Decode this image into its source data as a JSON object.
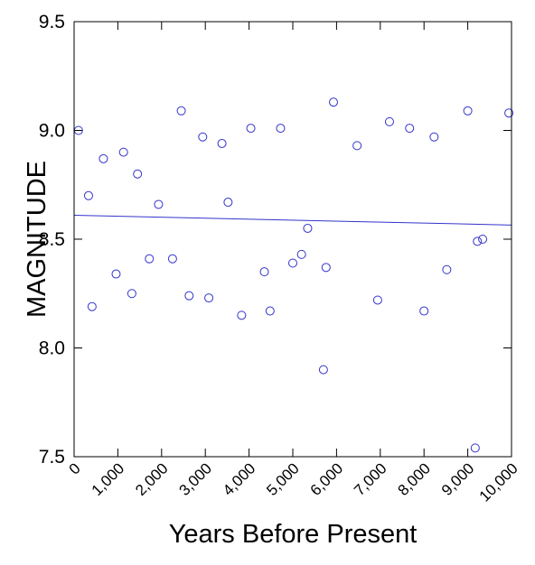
{
  "chart_data": {
    "type": "scatter",
    "xlabel": "Years Before Present",
    "ylabel": "MAGNITUDE",
    "xlim": [
      0,
      10000
    ],
    "ylim": [
      7.5,
      9.5
    ],
    "x_ticks": [
      0,
      1000,
      2000,
      3000,
      4000,
      5000,
      6000,
      7000,
      8000,
      9000,
      10000
    ],
    "x_tick_labels": [
      "0",
      "1,000",
      "2,000",
      "3,000",
      "4,000",
      "5,000",
      "6,000",
      "7,000",
      "8,000",
      "9,000",
      "10,000"
    ],
    "y_ticks": [
      7.5,
      8.0,
      8.5,
      9.0,
      9.5
    ],
    "y_tick_labels": [
      "7.5",
      "8.0",
      "8.5",
      "9.0",
      "9.5"
    ],
    "grid": false,
    "marker_color": "#3333cc",
    "trend_color": "#3333cc",
    "points": [
      {
        "x": 100,
        "y": 9.0
      },
      {
        "x": 330,
        "y": 8.7
      },
      {
        "x": 410,
        "y": 8.19
      },
      {
        "x": 670,
        "y": 8.87
      },
      {
        "x": 960,
        "y": 8.34
      },
      {
        "x": 1130,
        "y": 8.9
      },
      {
        "x": 1320,
        "y": 8.25
      },
      {
        "x": 1450,
        "y": 8.8
      },
      {
        "x": 1720,
        "y": 8.41
      },
      {
        "x": 1930,
        "y": 8.66
      },
      {
        "x": 2250,
        "y": 8.41
      },
      {
        "x": 2450,
        "y": 9.09
      },
      {
        "x": 2630,
        "y": 8.24
      },
      {
        "x": 2940,
        "y": 8.97
      },
      {
        "x": 3080,
        "y": 8.23
      },
      {
        "x": 3380,
        "y": 8.94
      },
      {
        "x": 3520,
        "y": 8.67
      },
      {
        "x": 3830,
        "y": 8.15
      },
      {
        "x": 4040,
        "y": 9.01
      },
      {
        "x": 4350,
        "y": 8.35
      },
      {
        "x": 4480,
        "y": 8.17
      },
      {
        "x": 4720,
        "y": 9.01
      },
      {
        "x": 5000,
        "y": 8.39
      },
      {
        "x": 5200,
        "y": 8.43
      },
      {
        "x": 5340,
        "y": 8.55
      },
      {
        "x": 5700,
        "y": 7.9
      },
      {
        "x": 5760,
        "y": 8.37
      },
      {
        "x": 5930,
        "y": 9.13
      },
      {
        "x": 6470,
        "y": 8.93
      },
      {
        "x": 6940,
        "y": 8.22
      },
      {
        "x": 7210,
        "y": 9.04
      },
      {
        "x": 7670,
        "y": 9.01
      },
      {
        "x": 8000,
        "y": 8.17
      },
      {
        "x": 8230,
        "y": 8.97
      },
      {
        "x": 8520,
        "y": 8.36
      },
      {
        "x": 9000,
        "y": 9.09
      },
      {
        "x": 9170,
        "y": 7.54
      },
      {
        "x": 9220,
        "y": 8.49
      },
      {
        "x": 9340,
        "y": 8.5
      },
      {
        "x": 9940,
        "y": 9.08
      }
    ],
    "trend_line": {
      "x": [
        0,
        10000
      ],
      "y": [
        8.61,
        8.565
      ]
    }
  }
}
